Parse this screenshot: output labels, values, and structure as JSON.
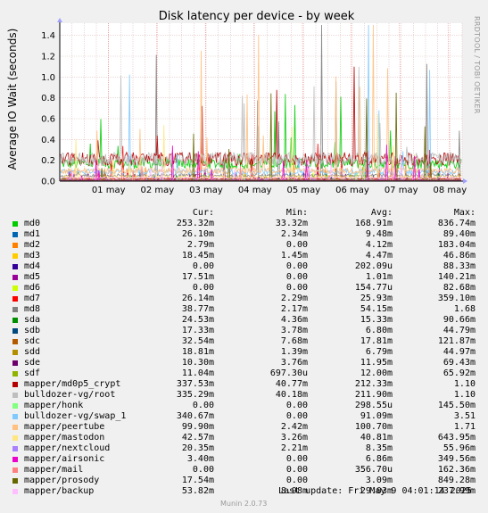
{
  "chart_data": {
    "type": "line",
    "title": "Disk latency per device - by week",
    "ylabel": "Average IO Wait (seconds)",
    "xlabel": "",
    "ylim": [
      0,
      1.5
    ],
    "yticks": [
      "0.0",
      "0.2",
      "0.4",
      "0.6",
      "0.8",
      "1.0",
      "1.2",
      "1.4"
    ],
    "x_ticks": [
      "01 may",
      "02 may",
      "03 may",
      "04 may",
      "05 may",
      "06 may",
      "07 may",
      "08 may"
    ],
    "grid": true,
    "columns": [
      "Cur:",
      "Min:",
      "Avg:",
      "Max:"
    ],
    "series": [
      {
        "name": "md0",
        "color": "#00cc00",
        "cur": "253.32m",
        "min": "33.32m",
        "avg": "168.91m",
        "max": "836.74m"
      },
      {
        "name": "md1",
        "color": "#0066b3",
        "cur": "26.10m",
        "min": "2.34m",
        "avg": "9.48m",
        "max": "89.40m"
      },
      {
        "name": "md2",
        "color": "#ff8000",
        "cur": "2.79m",
        "min": "0.00",
        "avg": "4.12m",
        "max": "183.04m"
      },
      {
        "name": "md3",
        "color": "#ffcc00",
        "cur": "18.45m",
        "min": "1.45m",
        "avg": "4.47m",
        "max": "46.86m"
      },
      {
        "name": "md4",
        "color": "#330099",
        "cur": "0.00",
        "min": "0.00",
        "avg": "202.09u",
        "max": "88.33m"
      },
      {
        "name": "md5",
        "color": "#990099",
        "cur": "17.51m",
        "min": "0.00",
        "avg": "1.01m",
        "max": "140.21m"
      },
      {
        "name": "md6",
        "color": "#ccff00",
        "cur": "0.00",
        "min": "0.00",
        "avg": "154.77u",
        "max": "82.68m"
      },
      {
        "name": "md7",
        "color": "#ff0000",
        "cur": "26.14m",
        "min": "2.29m",
        "avg": "25.93m",
        "max": "359.10m"
      },
      {
        "name": "md8",
        "color": "#808080",
        "cur": "38.77m",
        "min": "2.17m",
        "avg": "54.15m",
        "max": "1.68"
      },
      {
        "name": "sda",
        "color": "#008f00",
        "cur": "24.53m",
        "min": "4.36m",
        "avg": "15.33m",
        "max": "90.66m"
      },
      {
        "name": "sdb",
        "color": "#00487d",
        "cur": "17.33m",
        "min": "3.78m",
        "avg": "6.80m",
        "max": "44.79m"
      },
      {
        "name": "sdc",
        "color": "#b35a00",
        "cur": "32.54m",
        "min": "7.68m",
        "avg": "17.81m",
        "max": "121.87m"
      },
      {
        "name": "sdd",
        "color": "#b38f00",
        "cur": "18.81m",
        "min": "1.39m",
        "avg": "6.79m",
        "max": "44.97m"
      },
      {
        "name": "sde",
        "color": "#6b006b",
        "cur": "10.30m",
        "min": "3.76m",
        "avg": "11.95m",
        "max": "69.43m"
      },
      {
        "name": "sdf",
        "color": "#8fb300",
        "cur": "11.04m",
        "min": "697.30u",
        "avg": "12.00m",
        "max": "65.92m"
      },
      {
        "name": "mapper/md0p5_crypt",
        "color": "#b30000",
        "cur": "337.53m",
        "min": "40.77m",
        "avg": "212.33m",
        "max": "1.10"
      },
      {
        "name": "bulldozer-vg/root",
        "color": "#bebebe",
        "cur": "335.29m",
        "min": "40.18m",
        "avg": "211.90m",
        "max": "1.10"
      },
      {
        "name": "mapper/honk",
        "color": "#80ff80",
        "cur": "0.00",
        "min": "0.00",
        "avg": "298.55u",
        "max": "145.50m"
      },
      {
        "name": "bulldozer-vg/swap_1",
        "color": "#80c9ff",
        "cur": "340.67m",
        "min": "0.00",
        "avg": "91.09m",
        "max": "3.51"
      },
      {
        "name": "mapper/peertube",
        "color": "#ffc080",
        "cur": "99.90m",
        "min": "2.42m",
        "avg": "100.70m",
        "max": "1.71"
      },
      {
        "name": "mapper/mastodon",
        "color": "#ffe680",
        "cur": "42.57m",
        "min": "3.26m",
        "avg": "40.81m",
        "max": "643.95m"
      },
      {
        "name": "mapper/nextcloud",
        "color": "#aa80ff",
        "cur": "20.35m",
        "min": "2.21m",
        "avg": "8.35m",
        "max": "55.96m"
      },
      {
        "name": "mapper/airsonic",
        "color": "#ee00cc",
        "cur": "3.40m",
        "min": "0.00",
        "avg": "6.86m",
        "max": "349.56m"
      },
      {
        "name": "mapper/mail",
        "color": "#ff8080",
        "cur": "0.00",
        "min": "0.00",
        "avg": "356.70u",
        "max": "162.36m"
      },
      {
        "name": "mapper/prosody",
        "color": "#666600",
        "cur": "17.54m",
        "min": "0.00",
        "avg": "3.09m",
        "max": "849.28m"
      },
      {
        "name": "mapper/backup",
        "color": "#ffbfff",
        "cur": "53.82m",
        "min": "8.98m",
        "avg": "29.03m",
        "max": "237.99m"
      }
    ]
  },
  "side_label": "RRDTOOL / TOBI OETIKER",
  "last_update": "Last update: Fri May  9 04:01:14 2025",
  "footer": "Munin 2.0.73"
}
